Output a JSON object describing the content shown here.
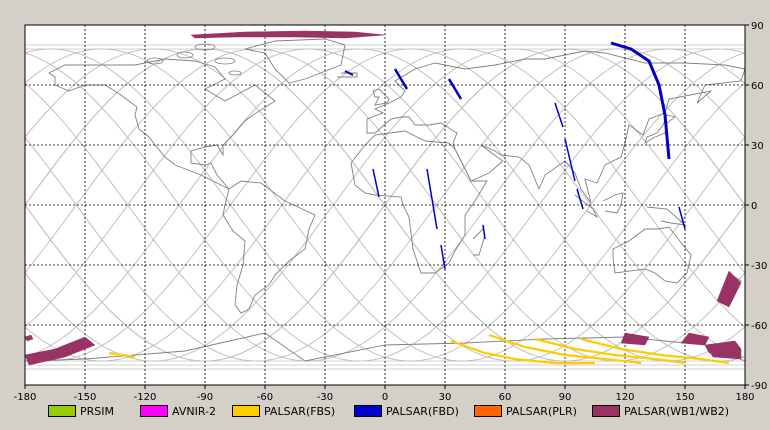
{
  "map": {
    "lon_ticks": [
      "-180",
      "-150",
      "-120",
      "-90",
      "-60",
      "-30",
      "0",
      "30",
      "60",
      "90",
      "120",
      "150",
      "180"
    ],
    "lat_ticks": [
      "90",
      "60",
      "30",
      "0",
      "-30",
      "-60",
      "-90"
    ]
  },
  "legend": [
    {
      "label": "PRSIM",
      "color": "#99cc00"
    },
    {
      "label": "AVNIR-2",
      "color": "#ff00ff"
    },
    {
      "label": "PALSAR(FBS)",
      "color": "#ffcc00"
    },
    {
      "label": "PALSAR(FBD)",
      "color": "#0000cc"
    },
    {
      "label": "PALSAR(PLR)",
      "color": "#ff6600"
    },
    {
      "label": "PALSAR(WB1/WB2)",
      "color": "#993366"
    }
  ],
  "colors": {
    "background": "#ffffff",
    "grid": "#000000",
    "coast": "#808080",
    "orbit": "#c0c0c0"
  }
}
